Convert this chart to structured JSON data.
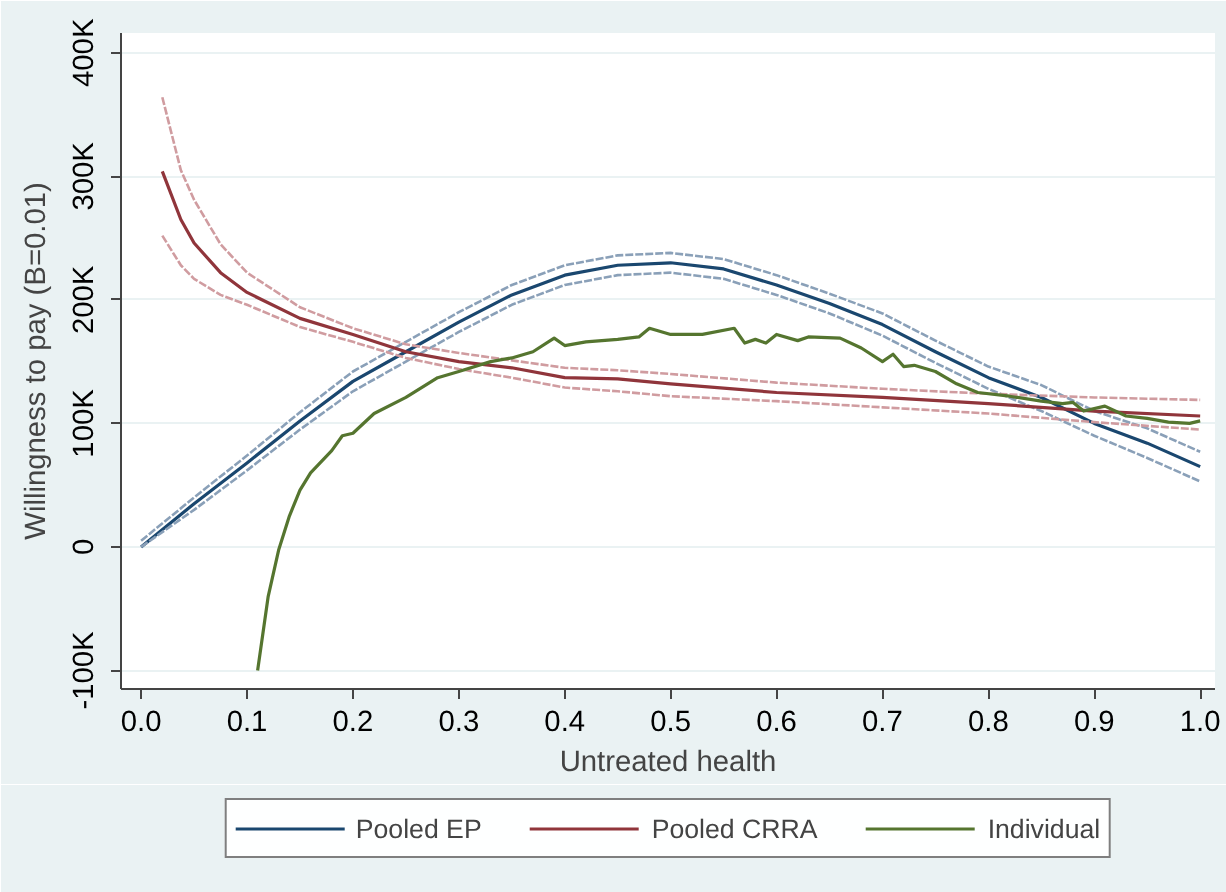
{
  "chart_data": {
    "type": "line",
    "xlabel": "Untreated health",
    "ylabel": "Willingness to pay (B=0.01)",
    "xlim": [
      -0.019,
      1.014
    ],
    "ylim": [
      -115000,
      416000
    ],
    "xticks": [
      {
        "value": 0,
        "label": "0.0"
      },
      0.1,
      0.2,
      0.3,
      0.4,
      0.5,
      0.6,
      0.7,
      0.8,
      0.9,
      {
        "value": 1,
        "label": "1.0"
      }
    ],
    "yticks": [
      {
        "value": -100000,
        "label": "-100K"
      },
      0,
      {
        "value": 100000,
        "label": "100K"
      },
      {
        "value": 200000,
        "label": "200K"
      },
      {
        "value": 300000,
        "label": "300K"
      },
      {
        "value": 400000,
        "label": "400K"
      }
    ],
    "grid": "y",
    "legend": "bottom",
    "line_style": "solid",
    "marker": "none",
    "series": [
      {
        "name": "Pooled EP",
        "color": "#1a476f",
        "x": [
          0,
          0.05,
          0.1,
          0.15,
          0.2,
          0.25,
          0.3,
          0.35,
          0.4,
          0.45,
          0.5,
          0.55,
          0.6,
          0.65,
          0.7,
          0.75,
          0.8,
          0.85,
          0.9,
          0.95,
          1.0
        ],
        "values": [
          0,
          35000,
          68000,
          102000,
          134000,
          158000,
          182000,
          204000,
          220000,
          228000,
          230000,
          225000,
          212000,
          197000,
          180000,
          158000,
          137000,
          121000,
          100000,
          84000,
          65000
        ]
      },
      {
        "color": "#8aa0b8",
        "line_style": "dashed",
        "x": [
          0,
          0.05,
          0.1,
          0.15,
          0.2,
          0.25,
          0.3,
          0.35,
          0.4,
          0.45,
          0.5,
          0.55,
          0.6,
          0.65,
          0.7,
          0.75,
          0.8,
          0.85,
          0.9,
          0.95,
          1.0
        ],
        "values": [
          0,
          30000,
          62000,
          95000,
          126000,
          150000,
          174000,
          196000,
          212000,
          220000,
          222000,
          217000,
          204000,
          189000,
          171000,
          149000,
          128000,
          110000,
          90000,
          72000,
          53000
        ]
      },
      {
        "color": "#8aa0b8",
        "line_style": "dashed",
        "x": [
          0,
          0.05,
          0.1,
          0.15,
          0.2,
          0.25,
          0.3,
          0.35,
          0.4,
          0.45,
          0.5,
          0.55,
          0.6,
          0.65,
          0.7,
          0.75,
          0.8,
          0.85,
          0.9,
          0.95,
          1.0
        ],
        "values": [
          5000,
          40000,
          74000,
          109000,
          142000,
          166000,
          190000,
          212000,
          228000,
          236000,
          238000,
          233000,
          220000,
          205000,
          189000,
          167000,
          146000,
          131000,
          110000,
          96000,
          77000
        ]
      },
      {
        "name": "Pooled CRRA",
        "color": "#90353b",
        "x": [
          0.02,
          0.0375,
          0.05,
          0.075,
          0.1,
          0.15,
          0.2,
          0.25,
          0.3,
          0.35,
          0.4,
          0.45,
          0.5,
          0.6,
          0.7,
          0.8,
          0.9,
          1.0
        ],
        "values": [
          304000,
          265000,
          246000,
          222000,
          206000,
          185000,
          172000,
          158000,
          150000,
          145000,
          137000,
          136000,
          132000,
          125000,
          121000,
          116000,
          110000,
          106000
        ]
      },
      {
        "color": "#d09ca0",
        "line_style": "dashed",
        "x": [
          0.02,
          0.0375,
          0.05,
          0.075,
          0.1,
          0.15,
          0.2,
          0.25,
          0.3,
          0.35,
          0.4,
          0.45,
          0.5,
          0.6,
          0.7,
          0.8,
          0.9,
          1.0
        ],
        "values": [
          252000,
          228000,
          217000,
          204000,
          196000,
          178000,
          166000,
          153000,
          144000,
          137000,
          129000,
          126000,
          122000,
          118000,
          113000,
          108000,
          101000,
          95000
        ]
      },
      {
        "color": "#d09ca0",
        "line_style": "dashed",
        "x": [
          0.02,
          0.0375,
          0.05,
          0.075,
          0.1,
          0.15,
          0.2,
          0.25,
          0.3,
          0.35,
          0.4,
          0.45,
          0.5,
          0.6,
          0.7,
          0.8,
          0.9,
          1.0
        ],
        "values": [
          364000,
          305000,
          281000,
          245000,
          222000,
          194000,
          177000,
          164000,
          157000,
          151000,
          145000,
          143000,
          140000,
          133000,
          128000,
          124000,
          121000,
          119000
        ]
      },
      {
        "name": "Individual",
        "color": "#55752f",
        "x": [
          0.11,
          0.12,
          0.13,
          0.14,
          0.15,
          0.16,
          0.18,
          0.19,
          0.2,
          0.22,
          0.25,
          0.28,
          0.3,
          0.33,
          0.35,
          0.37,
          0.39,
          0.4,
          0.42,
          0.45,
          0.47,
          0.48,
          0.5,
          0.53,
          0.56,
          0.57,
          0.58,
          0.59,
          0.6,
          0.62,
          0.63,
          0.66,
          0.68,
          0.7,
          0.71,
          0.72,
          0.73,
          0.75,
          0.77,
          0.79,
          0.82,
          0.85,
          0.87,
          0.88,
          0.89,
          0.91,
          0.93,
          0.95,
          0.97,
          0.99,
          1.0
        ],
        "values": [
          -100000,
          -40000,
          -2000,
          25000,
          46000,
          60000,
          78000,
          90000,
          92000,
          108000,
          121000,
          137000,
          142000,
          150000,
          153000,
          158000,
          169000,
          163000,
          166000,
          168000,
          170000,
          177000,
          172000,
          172000,
          177000,
          165000,
          168000,
          165000,
          172000,
          167000,
          170000,
          169000,
          161000,
          150000,
          156000,
          146000,
          147000,
          142000,
          132000,
          125000,
          122000,
          118000,
          116000,
          117000,
          110000,
          114000,
          106000,
          104000,
          101000,
          100000,
          102000
        ]
      }
    ]
  }
}
